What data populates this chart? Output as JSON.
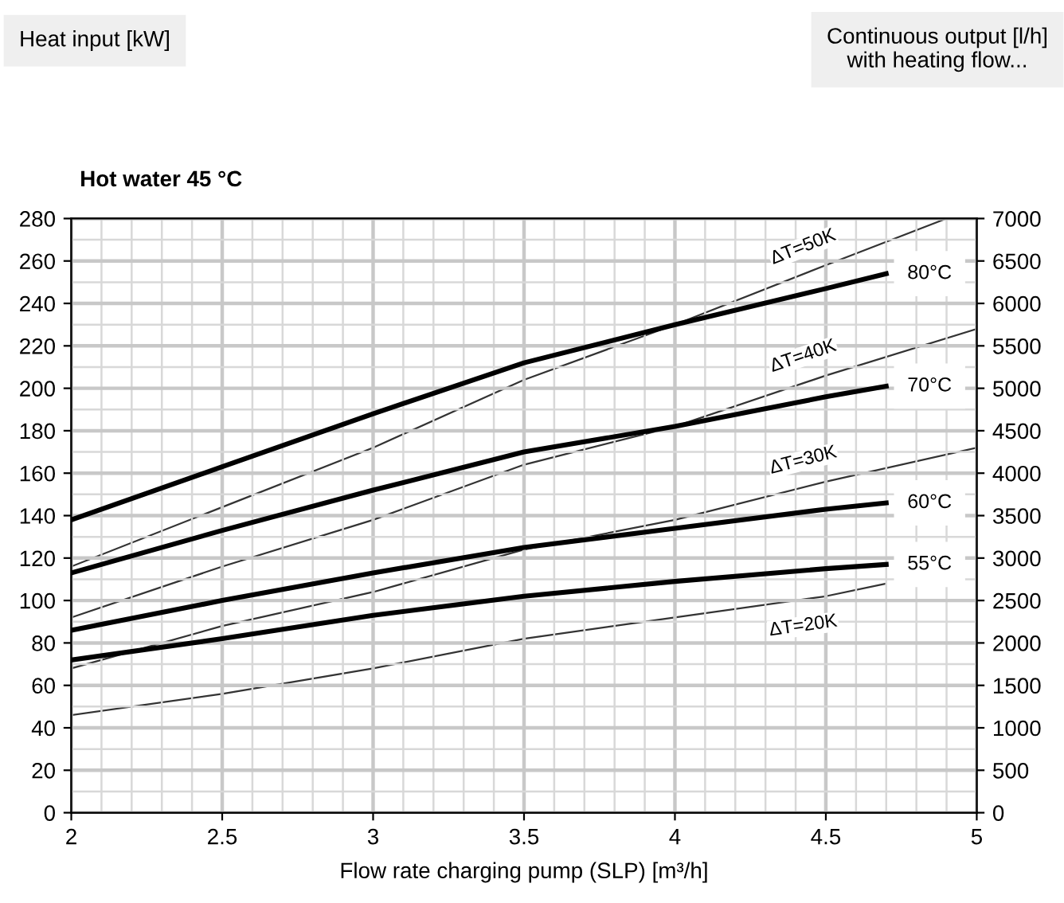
{
  "chart_data": {
    "type": "line",
    "title": "Hot water 45 °C",
    "xlabel": "Flow rate charging pump (SLP) [m³/h]",
    "annotations": [
      "Heat input [kW]",
      "Continuous output [l/h]\nwith heating flow..."
    ],
    "x": [
      2,
      2.5,
      3,
      3.5,
      4,
      4.5,
      4.7
    ],
    "series": [
      {
        "name": "80°C",
        "color": "#000000",
        "values": [
          138,
          163,
          188,
          212,
          230,
          247,
          254
        ]
      },
      {
        "name": "70°C",
        "color": "#000000",
        "values": [
          113,
          133,
          152,
          170,
          182,
          196,
          201
        ]
      },
      {
        "name": "60°C",
        "color": "#000000",
        "values": [
          86,
          100,
          113,
          125,
          134,
          143,
          146
        ]
      },
      {
        "name": "55°C",
        "color": "#000000",
        "values": [
          72,
          82,
          93,
          102,
          109,
          115,
          117
        ]
      },
      {
        "name": "ΔT=50K",
        "color": "#333333",
        "axis": "y2",
        "x": [
          2,
          2.5,
          3,
          3.5,
          4,
          4.5,
          4.9
        ],
        "values": [
          2900,
          3600,
          4300,
          5100,
          5750,
          6450,
          7000
        ]
      },
      {
        "name": "ΔT=40K",
        "color": "#333333",
        "axis": "y2",
        "x": [
          2,
          2.5,
          3,
          3.5,
          4,
          4.5,
          5
        ],
        "values": [
          2300,
          2900,
          3450,
          4100,
          4550,
          5150,
          5700
        ]
      },
      {
        "name": "ΔT=30K",
        "color": "#333333",
        "axis": "y2",
        "x": [
          2,
          2.5,
          3,
          3.5,
          4,
          4.5,
          5
        ],
        "values": [
          1700,
          2200,
          2600,
          3100,
          3450,
          3900,
          4300
        ]
      },
      {
        "name": "ΔT=20K",
        "color": "#333333",
        "axis": "y2",
        "x": [
          2,
          2.5,
          3,
          3.5,
          4,
          4.5,
          4.7
        ],
        "values": [
          1150,
          1400,
          1700,
          2050,
          2300,
          2550,
          2700
        ]
      }
    ],
    "xlim": [
      2,
      5
    ],
    "xticks": [
      2,
      2.5,
      3,
      3.5,
      4,
      4.5,
      5
    ],
    "ylim": [
      0,
      280
    ],
    "yticks": [
      0,
      20,
      40,
      60,
      80,
      100,
      120,
      140,
      160,
      180,
      200,
      220,
      240,
      260,
      280
    ],
    "y2lim": [
      0,
      7000
    ],
    "y2ticks": [
      0,
      500,
      1000,
      1500,
      2000,
      2500,
      3000,
      3500,
      4000,
      4500,
      5000,
      5500,
      6000,
      6500,
      7000
    ],
    "grid": true,
    "legend": false,
    "marker": "none",
    "line_style": "solid"
  }
}
